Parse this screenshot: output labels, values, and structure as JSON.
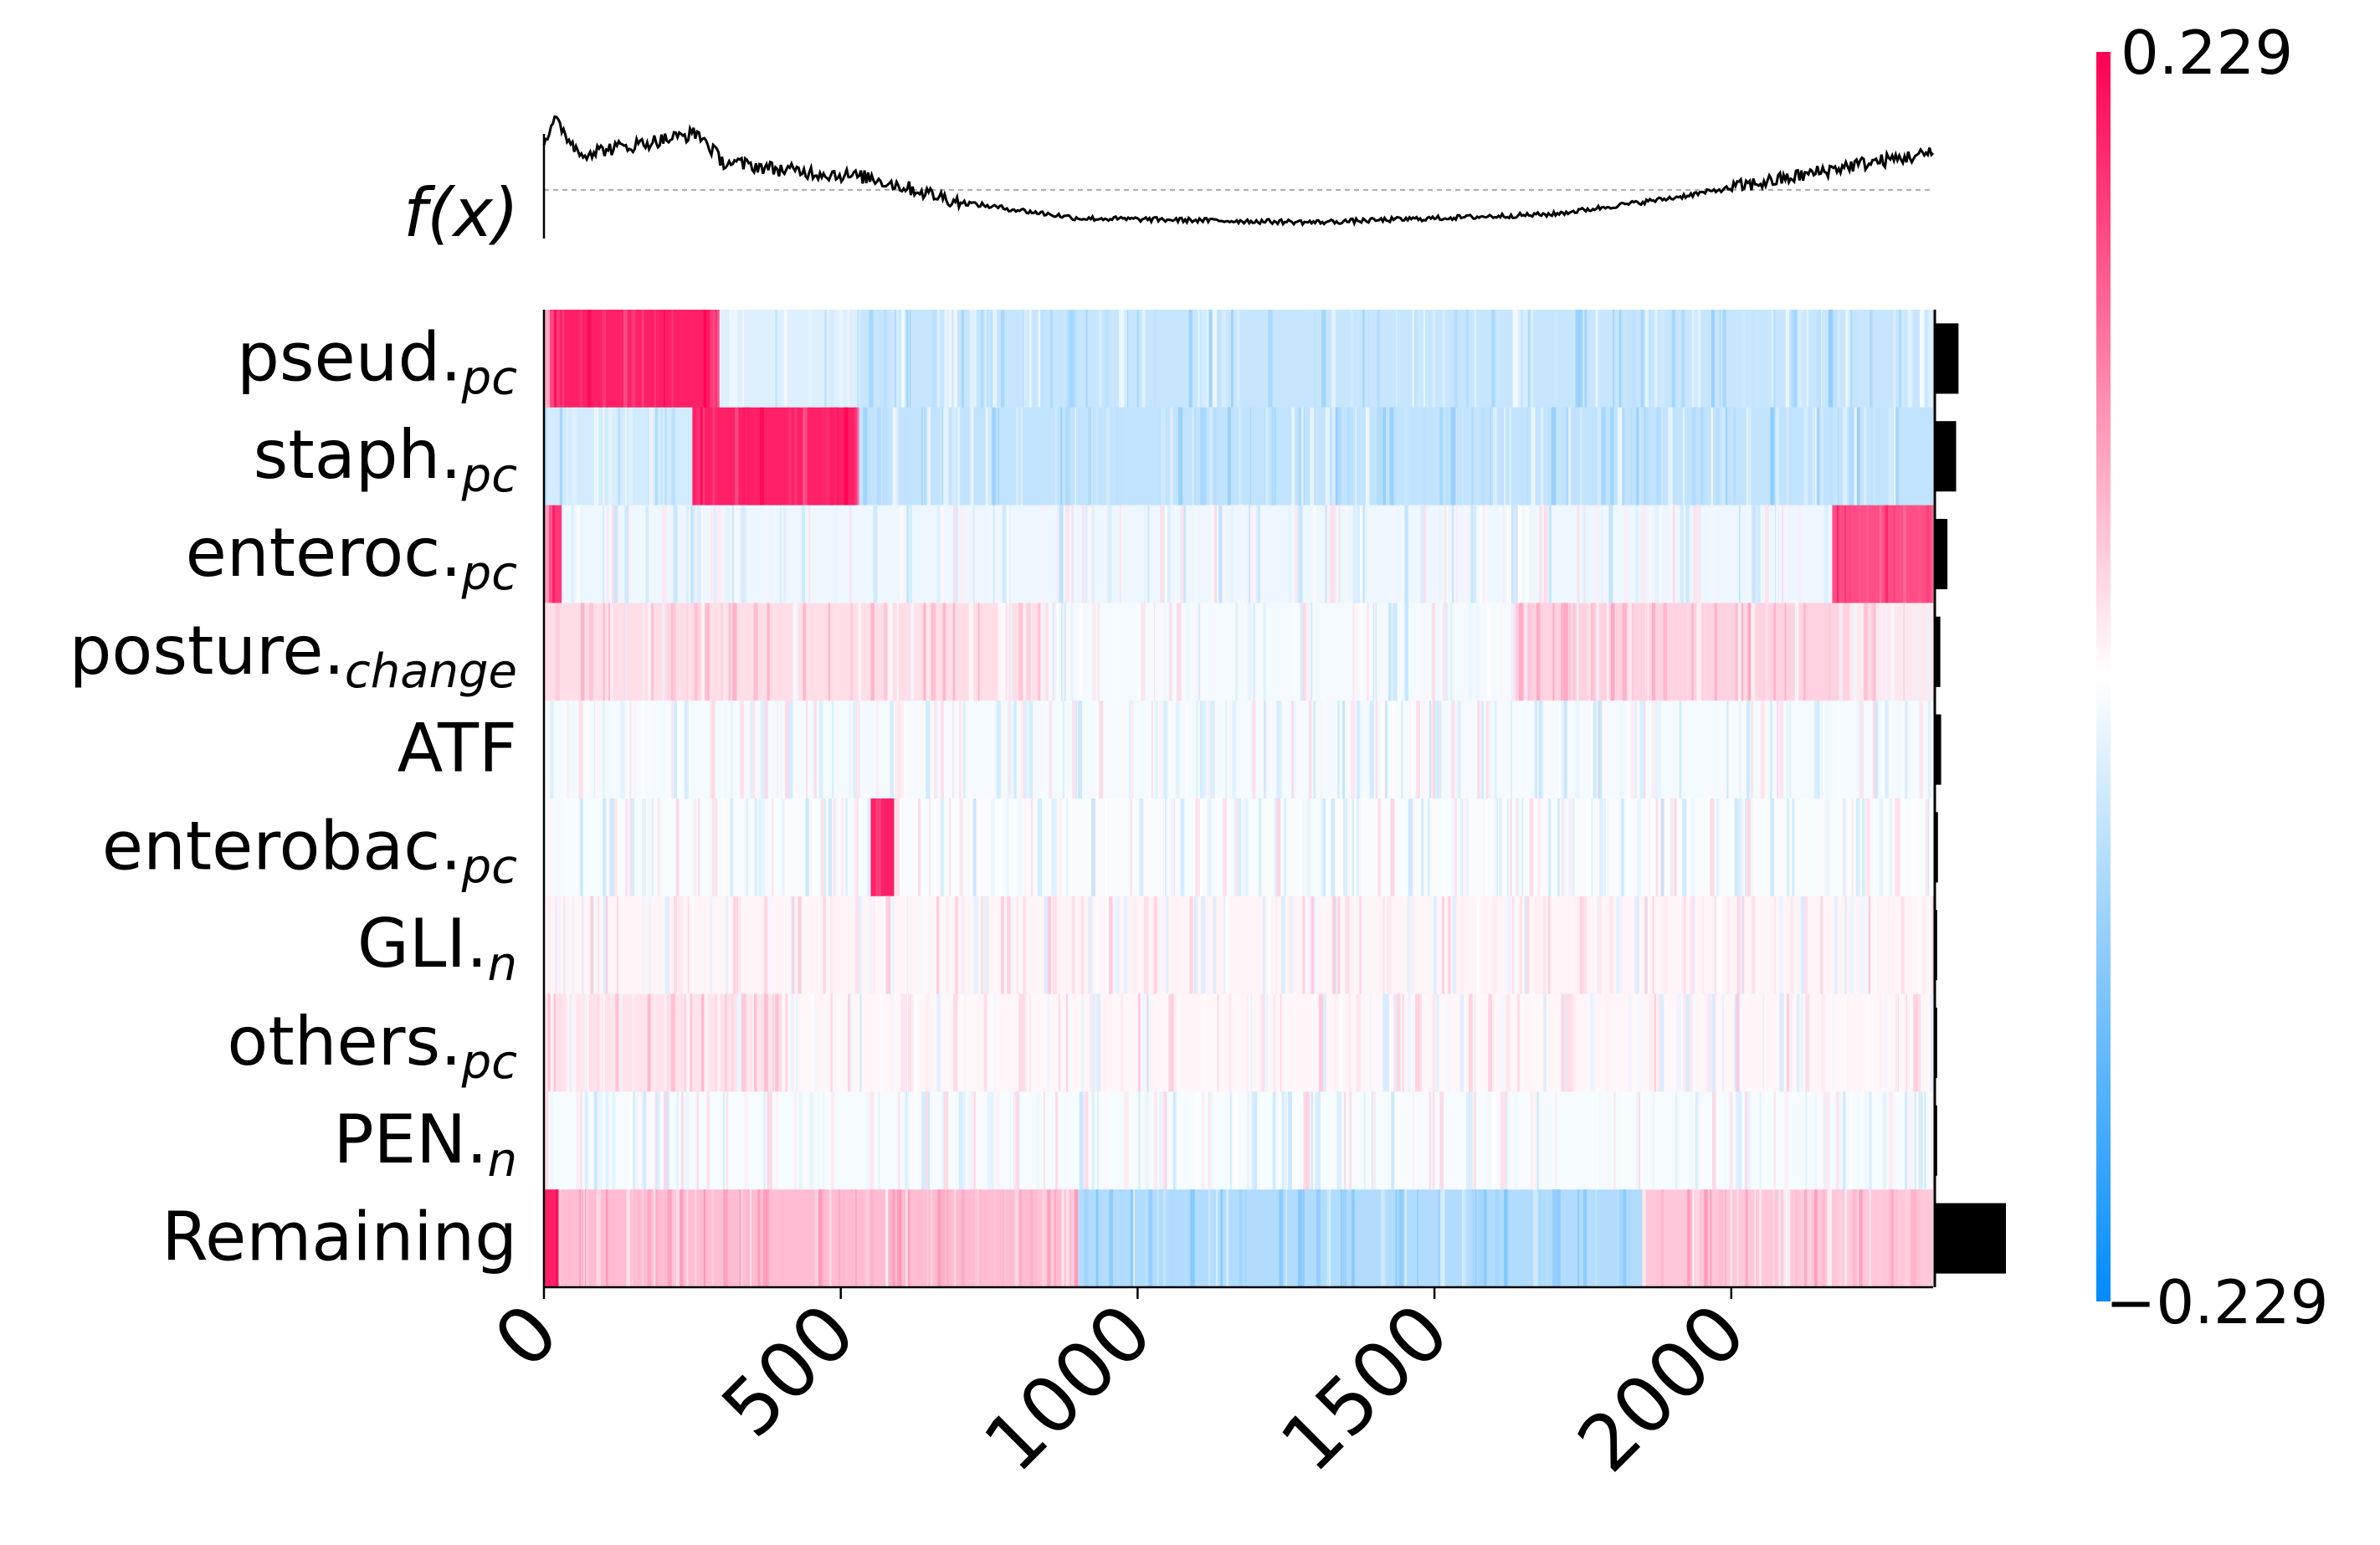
{
  "chart_data": {
    "type": "heatmap",
    "title": "",
    "xlabel": "",
    "ylabel": "",
    "fx_label": "f(x)",
    "xlim": [
      0,
      2340
    ],
    "x_ticks": [
      0,
      500,
      1000,
      1500,
      2000
    ],
    "n_instances": 2340,
    "value_range": [
      -0.229,
      0.229
    ],
    "colorbar": {
      "max_label": "0.229",
      "min_label": "−0.229",
      "max_color": "#ff0052",
      "mid_color": "#ffffff",
      "min_color": "#008bfb"
    },
    "features": [
      {
        "base": "pseud.",
        "sub": "pc",
        "importance": 0.03,
        "segments": [
          {
            "start": 0,
            "end": 10,
            "value": 0.08
          },
          {
            "start": 10,
            "end": 290,
            "value": 0.2
          },
          {
            "start": 290,
            "end": 530,
            "value": -0.03
          },
          {
            "start": 530,
            "end": 2340,
            "value": -0.05
          }
        ]
      },
      {
        "base": "staph.",
        "sub": "pc",
        "importance": 0.027,
        "segments": [
          {
            "start": 0,
            "end": 250,
            "value": -0.04
          },
          {
            "start": 250,
            "end": 525,
            "value": 0.2
          },
          {
            "start": 525,
            "end": 2340,
            "value": -0.055
          }
        ]
      },
      {
        "base": "enteroc.",
        "sub": "pc",
        "importance": 0.016,
        "segments": [
          {
            "start": 0,
            "end": 5,
            "value": 0.1
          },
          {
            "start": 5,
            "end": 30,
            "value": 0.18
          },
          {
            "start": 30,
            "end": 2170,
            "value": -0.015
          },
          {
            "start": 2170,
            "end": 2340,
            "value": 0.16
          }
        ]
      },
      {
        "base": "posture.",
        "sub": "change",
        "importance": 0.007,
        "segments": [
          {
            "start": 0,
            "end": 850,
            "value": 0.03
          },
          {
            "start": 850,
            "end": 1630,
            "value": -0.01
          },
          {
            "start": 1630,
            "end": 2200,
            "value": 0.04
          },
          {
            "start": 2200,
            "end": 2340,
            "value": 0.02
          }
        ]
      },
      {
        "base": "ATF",
        "sub": "",
        "importance": 0.008,
        "segments": [
          {
            "start": 0,
            "end": 2340,
            "value": -0.01
          }
        ]
      },
      {
        "base": "enterobac.",
        "sub": "pc",
        "importance": 0.004,
        "segments": [
          {
            "start": 0,
            "end": 550,
            "value": -0.008
          },
          {
            "start": 550,
            "end": 590,
            "value": 0.2
          },
          {
            "start": 590,
            "end": 2340,
            "value": -0.006
          }
        ]
      },
      {
        "base": "GLI.",
        "sub": "n",
        "importance": 0.003,
        "segments": [
          {
            "start": 0,
            "end": 2340,
            "value": 0.01
          }
        ]
      },
      {
        "base": "others.",
        "sub": "pc",
        "importance": 0.003,
        "segments": [
          {
            "start": 0,
            "end": 400,
            "value": 0.025
          },
          {
            "start": 400,
            "end": 2340,
            "value": 0.008
          }
        ]
      },
      {
        "base": "PEN.",
        "sub": "n",
        "importance": 0.003,
        "segments": [
          {
            "start": 0,
            "end": 2340,
            "value": -0.008
          }
        ]
      },
      {
        "base": "Remaining",
        "sub": "",
        "importance": 0.09,
        "segments": [
          {
            "start": 0,
            "end": 25,
            "value": 0.2
          },
          {
            "start": 25,
            "end": 900,
            "value": 0.06
          },
          {
            "start": 900,
            "end": 1850,
            "value": -0.07
          },
          {
            "start": 1850,
            "end": 2340,
            "value": 0.05
          }
        ]
      }
    ],
    "importance_max": 0.09,
    "fx_series": {
      "baseline": 0.0,
      "keyframes": [
        {
          "x": 0,
          "y": 0.12
        },
        {
          "x": 20,
          "y": 0.17
        },
        {
          "x": 60,
          "y": 0.09
        },
        {
          "x": 150,
          "y": 0.11
        },
        {
          "x": 260,
          "y": 0.14
        },
        {
          "x": 300,
          "y": 0.07
        },
        {
          "x": 400,
          "y": 0.05
        },
        {
          "x": 550,
          "y": 0.03
        },
        {
          "x": 700,
          "y": -0.03
        },
        {
          "x": 900,
          "y": -0.07
        },
        {
          "x": 1100,
          "y": -0.075
        },
        {
          "x": 1300,
          "y": -0.08
        },
        {
          "x": 1500,
          "y": -0.07
        },
        {
          "x": 1700,
          "y": -0.06
        },
        {
          "x": 1900,
          "y": -0.02
        },
        {
          "x": 2100,
          "y": 0.03
        },
        {
          "x": 2200,
          "y": 0.06
        },
        {
          "x": 2340,
          "y": 0.09
        }
      ]
    }
  }
}
